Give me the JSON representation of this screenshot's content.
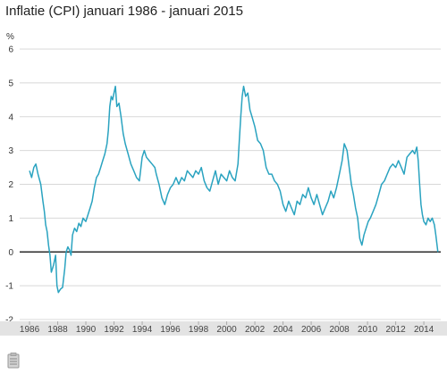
{
  "chart_data": {
    "type": "line",
    "title": "Inflatie (CPI) januari 1986 - januari 2015",
    "ylabel": "%",
    "xlabel": "",
    "ylim": [
      -2,
      6
    ],
    "xlim": [
      1985.3,
      2015.2
    ],
    "yticks": [
      6,
      5,
      4,
      3,
      2,
      1,
      0,
      -1,
      -2
    ],
    "xticks": [
      "1986",
      "1988",
      "1990",
      "1992",
      "1994",
      "1996",
      "1998",
      "2000",
      "2002",
      "2004",
      "2006",
      "2008",
      "2010",
      "2012",
      "2014"
    ],
    "grid": true,
    "line_color": "#2aa3c0",
    "series": [
      {
        "name": "",
        "values": [
          [
            1986.0,
            2.4
          ],
          [
            1986.15,
            2.2
          ],
          [
            1986.3,
            2.5
          ],
          [
            1986.45,
            2.6
          ],
          [
            1986.6,
            2.3
          ],
          [
            1986.8,
            2.0
          ],
          [
            1986.95,
            1.5
          ],
          [
            1987.05,
            1.2
          ],
          [
            1987.15,
            0.8
          ],
          [
            1987.25,
            0.6
          ],
          [
            1987.35,
            0.2
          ],
          [
            1987.45,
            -0.1
          ],
          [
            1987.55,
            -0.6
          ],
          [
            1987.7,
            -0.4
          ],
          [
            1987.85,
            -0.1
          ],
          [
            1987.95,
            -1.0
          ],
          [
            1988.05,
            -1.2
          ],
          [
            1988.2,
            -1.1
          ],
          [
            1988.35,
            -1.05
          ],
          [
            1988.5,
            -0.5
          ],
          [
            1988.6,
            0.0
          ],
          [
            1988.72,
            0.15
          ],
          [
            1988.85,
            0.05
          ],
          [
            1988.95,
            -0.1
          ],
          [
            1989.05,
            0.5
          ],
          [
            1989.2,
            0.7
          ],
          [
            1989.35,
            0.6
          ],
          [
            1989.5,
            0.85
          ],
          [
            1989.65,
            0.75
          ],
          [
            1989.8,
            1.0
          ],
          [
            1990.0,
            0.9
          ],
          [
            1990.15,
            1.1
          ],
          [
            1990.3,
            1.3
          ],
          [
            1990.45,
            1.5
          ],
          [
            1990.6,
            1.9
          ],
          [
            1990.75,
            2.2
          ],
          [
            1990.9,
            2.3
          ],
          [
            1991.05,
            2.5
          ],
          [
            1991.2,
            2.7
          ],
          [
            1991.35,
            2.9
          ],
          [
            1991.5,
            3.2
          ],
          [
            1991.6,
            3.6
          ],
          [
            1991.7,
            4.3
          ],
          [
            1991.8,
            4.6
          ],
          [
            1991.9,
            4.5
          ],
          [
            1992.0,
            4.7
          ],
          [
            1992.1,
            4.9
          ],
          [
            1992.2,
            4.3
          ],
          [
            1992.35,
            4.4
          ],
          [
            1992.5,
            4.0
          ],
          [
            1992.65,
            3.5
          ],
          [
            1992.8,
            3.2
          ],
          [
            1993.0,
            2.9
          ],
          [
            1993.2,
            2.6
          ],
          [
            1993.4,
            2.4
          ],
          [
            1993.6,
            2.2
          ],
          [
            1993.8,
            2.1
          ],
          [
            1994.0,
            2.8
          ],
          [
            1994.15,
            3.0
          ],
          [
            1994.3,
            2.8
          ],
          [
            1994.5,
            2.7
          ],
          [
            1994.7,
            2.6
          ],
          [
            1994.9,
            2.5
          ],
          [
            1995.0,
            2.3
          ],
          [
            1995.2,
            2.0
          ],
          [
            1995.4,
            1.6
          ],
          [
            1995.6,
            1.4
          ],
          [
            1995.8,
            1.7
          ],
          [
            1996.0,
            1.9
          ],
          [
            1996.2,
            2.0
          ],
          [
            1996.4,
            2.2
          ],
          [
            1996.6,
            2.0
          ],
          [
            1996.8,
            2.2
          ],
          [
            1997.0,
            2.1
          ],
          [
            1997.2,
            2.4
          ],
          [
            1997.4,
            2.3
          ],
          [
            1997.6,
            2.2
          ],
          [
            1997.8,
            2.4
          ],
          [
            1998.0,
            2.3
          ],
          [
            1998.2,
            2.5
          ],
          [
            1998.4,
            2.1
          ],
          [
            1998.6,
            1.9
          ],
          [
            1998.8,
            1.8
          ],
          [
            1999.0,
            2.1
          ],
          [
            1999.2,
            2.4
          ],
          [
            1999.4,
            2.0
          ],
          [
            1999.6,
            2.3
          ],
          [
            1999.8,
            2.2
          ],
          [
            2000.0,
            2.1
          ],
          [
            2000.2,
            2.4
          ],
          [
            2000.4,
            2.2
          ],
          [
            2000.6,
            2.1
          ],
          [
            2000.8,
            2.6
          ],
          [
            2000.9,
            3.3
          ],
          [
            2001.0,
            4.0
          ],
          [
            2001.1,
            4.6
          ],
          [
            2001.2,
            4.9
          ],
          [
            2001.35,
            4.6
          ],
          [
            2001.5,
            4.7
          ],
          [
            2001.65,
            4.2
          ],
          [
            2001.8,
            4.0
          ],
          [
            2002.0,
            3.7
          ],
          [
            2002.2,
            3.3
          ],
          [
            2002.4,
            3.2
          ],
          [
            2002.6,
            3.0
          ],
          [
            2002.8,
            2.5
          ],
          [
            2003.0,
            2.3
          ],
          [
            2003.2,
            2.3
          ],
          [
            2003.4,
            2.1
          ],
          [
            2003.6,
            2.0
          ],
          [
            2003.8,
            1.8
          ],
          [
            2004.0,
            1.4
          ],
          [
            2004.2,
            1.2
          ],
          [
            2004.4,
            1.5
          ],
          [
            2004.6,
            1.3
          ],
          [
            2004.8,
            1.1
          ],
          [
            2005.0,
            1.5
          ],
          [
            2005.2,
            1.4
          ],
          [
            2005.4,
            1.7
          ],
          [
            2005.6,
            1.6
          ],
          [
            2005.8,
            1.9
          ],
          [
            2006.0,
            1.6
          ],
          [
            2006.2,
            1.4
          ],
          [
            2006.4,
            1.7
          ],
          [
            2006.6,
            1.4
          ],
          [
            2006.8,
            1.1
          ],
          [
            2007.0,
            1.3
          ],
          [
            2007.2,
            1.5
          ],
          [
            2007.4,
            1.8
          ],
          [
            2007.6,
            1.6
          ],
          [
            2007.8,
            1.9
          ],
          [
            2008.0,
            2.3
          ],
          [
            2008.2,
            2.7
          ],
          [
            2008.35,
            3.2
          ],
          [
            2008.55,
            3.0
          ],
          [
            2008.7,
            2.5
          ],
          [
            2008.85,
            2.0
          ],
          [
            2009.0,
            1.7
          ],
          [
            2009.15,
            1.3
          ],
          [
            2009.3,
            1.0
          ],
          [
            2009.45,
            0.4
          ],
          [
            2009.6,
            0.2
          ],
          [
            2009.75,
            0.5
          ],
          [
            2009.9,
            0.7
          ],
          [
            2010.05,
            0.9
          ],
          [
            2010.2,
            1.0
          ],
          [
            2010.4,
            1.2
          ],
          [
            2010.6,
            1.4
          ],
          [
            2010.8,
            1.7
          ],
          [
            2011.0,
            2.0
          ],
          [
            2011.2,
            2.1
          ],
          [
            2011.4,
            2.3
          ],
          [
            2011.6,
            2.5
          ],
          [
            2011.8,
            2.6
          ],
          [
            2012.0,
            2.5
          ],
          [
            2012.2,
            2.7
          ],
          [
            2012.4,
            2.5
          ],
          [
            2012.6,
            2.3
          ],
          [
            2012.8,
            2.8
          ],
          [
            2013.0,
            2.9
          ],
          [
            2013.2,
            3.0
          ],
          [
            2013.35,
            2.9
          ],
          [
            2013.5,
            3.1
          ],
          [
            2013.6,
            2.7
          ],
          [
            2013.7,
            2.0
          ],
          [
            2013.8,
            1.4
          ],
          [
            2013.9,
            1.1
          ],
          [
            2014.0,
            0.9
          ],
          [
            2014.15,
            0.8
          ],
          [
            2014.3,
            1.0
          ],
          [
            2014.45,
            0.9
          ],
          [
            2014.6,
            1.0
          ],
          [
            2014.75,
            0.8
          ],
          [
            2014.85,
            0.5
          ],
          [
            2015.0,
            0.0
          ]
        ]
      }
    ]
  }
}
